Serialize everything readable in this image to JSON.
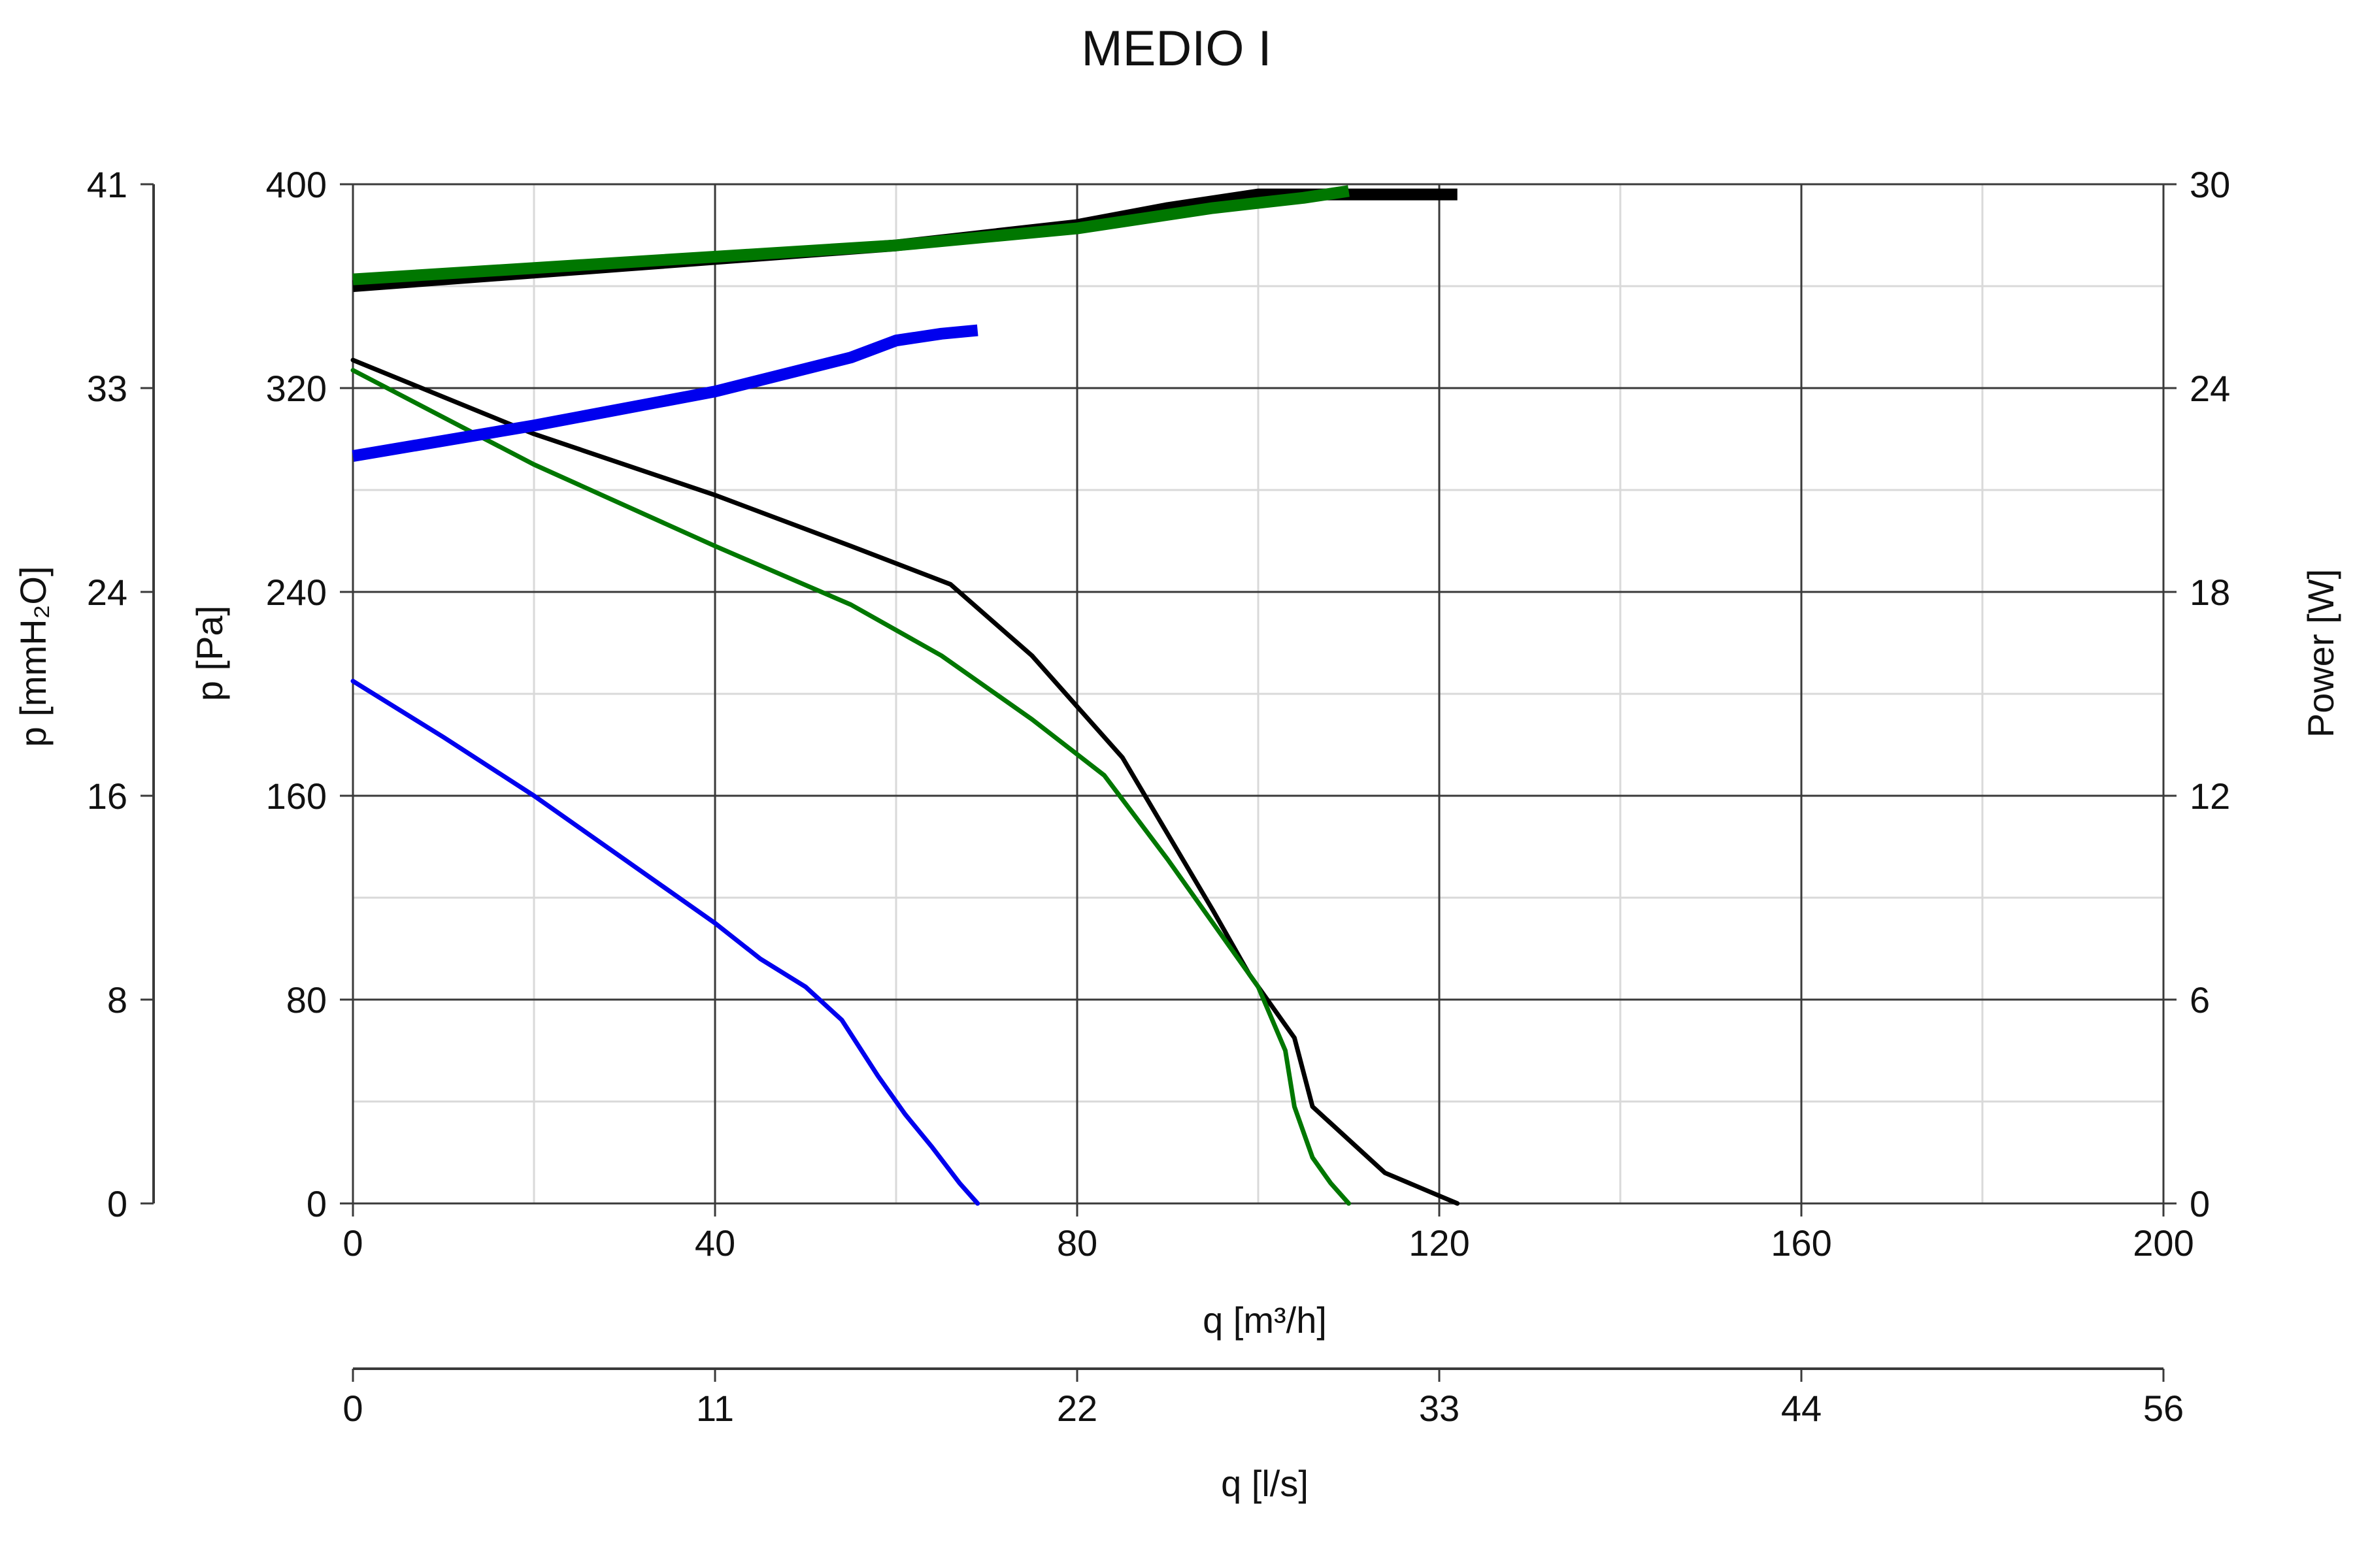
{
  "chart_data": {
    "type": "line",
    "title": "MEDIO I",
    "xlabel": "q [m³/h]",
    "x2label": "q [l/s]",
    "ylabel_left_outer": "p [mmH₂O]",
    "ylabel_left": "p [Pa]",
    "ylabel_right": "Power [W]",
    "xlim": [
      0,
      200
    ],
    "ylim": [
      0,
      400
    ],
    "y_right_lim": [
      0,
      30
    ],
    "grid": true,
    "x_ticks": [
      "0",
      "40",
      "80",
      "120",
      "160",
      "200"
    ],
    "x2_ticks": [
      "0",
      "11",
      "22",
      "33",
      "44",
      "56"
    ],
    "y_ticks": [
      "0",
      "80",
      "160",
      "240",
      "320",
      "400"
    ],
    "y_outer_ticks": [
      "0",
      "8",
      "16",
      "24",
      "33",
      "41"
    ],
    "y_right_ticks": [
      "0",
      "6",
      "12",
      "18",
      "24",
      "30"
    ],
    "pressure_series": [
      {
        "color": "#0000ee",
        "points": [
          [
            0,
            205
          ],
          [
            10,
            183
          ],
          [
            20,
            160
          ],
          [
            30,
            135
          ],
          [
            40,
            110
          ],
          [
            45,
            96
          ],
          [
            50,
            85
          ],
          [
            54,
            72
          ],
          [
            58,
            50
          ],
          [
            61,
            35
          ],
          [
            64,
            22
          ],
          [
            67,
            8
          ],
          [
            69,
            0
          ]
        ]
      },
      {
        "color": "#000000",
        "points": [
          [
            0,
            331
          ],
          [
            20,
            302
          ],
          [
            40,
            278
          ],
          [
            55,
            258
          ],
          [
            66,
            243
          ],
          [
            75,
            215
          ],
          [
            80,
            195
          ],
          [
            85,
            175
          ],
          [
            90,
            145
          ],
          [
            95,
            115
          ],
          [
            99,
            90
          ],
          [
            104,
            65
          ],
          [
            106,
            38
          ],
          [
            110,
            25
          ],
          [
            114,
            12
          ],
          [
            120,
            3
          ],
          [
            122,
            0
          ]
        ]
      },
      {
        "color": "#007700",
        "points": [
          [
            0,
            327
          ],
          [
            20,
            290
          ],
          [
            40,
            258
          ],
          [
            55,
            235
          ],
          [
            65,
            215
          ],
          [
            75,
            190
          ],
          [
            83,
            168
          ],
          [
            90,
            135
          ],
          [
            95,
            110
          ],
          [
            100,
            85
          ],
          [
            103,
            60
          ],
          [
            104,
            38
          ],
          [
            106,
            18
          ],
          [
            108,
            8
          ],
          [
            110,
            0
          ]
        ]
      }
    ],
    "power_series": [
      {
        "color": "#0000ee",
        "points": [
          [
            0,
            22.0
          ],
          [
            20,
            22.9
          ],
          [
            40,
            23.9
          ],
          [
            55,
            24.9
          ],
          [
            60,
            25.4
          ],
          [
            65,
            25.6
          ],
          [
            69,
            25.7
          ]
        ]
      },
      {
        "color": "#000000",
        "points": [
          [
            0,
            27.0
          ],
          [
            30,
            27.6
          ],
          [
            60,
            28.2
          ],
          [
            80,
            28.8
          ],
          [
            90,
            29.3
          ],
          [
            100,
            29.7
          ],
          [
            110,
            29.7
          ],
          [
            122,
            29.7
          ]
        ]
      },
      {
        "color": "#007700",
        "points": [
          [
            0,
            27.2
          ],
          [
            30,
            27.7
          ],
          [
            60,
            28.2
          ],
          [
            80,
            28.7
          ],
          [
            95,
            29.3
          ],
          [
            105,
            29.6
          ],
          [
            110,
            29.8
          ]
        ]
      }
    ]
  }
}
